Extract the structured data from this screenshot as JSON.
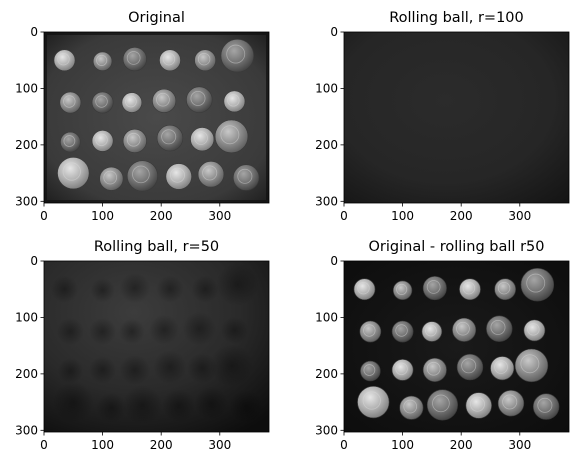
{
  "figure": {
    "cmap": "gray",
    "background": "#ffffff"
  },
  "chart_data": [
    {
      "type": "heatmap",
      "title": "Original",
      "image": "coins",
      "xticks": [
        0,
        100,
        200,
        300
      ],
      "yticks": [
        0,
        100,
        200,
        300
      ],
      "xlim": [
        0,
        384
      ],
      "ylim": [
        303,
        0
      ],
      "grid": false,
      "legend": "none"
    },
    {
      "type": "heatmap",
      "title": "Rolling ball, r=100",
      "image": "background-estimate",
      "xticks": [
        0,
        100,
        200,
        300
      ],
      "yticks": [
        0,
        100,
        200,
        300
      ],
      "xlim": [
        0,
        384
      ],
      "ylim": [
        303,
        0
      ],
      "grid": false,
      "legend": "none"
    },
    {
      "type": "heatmap",
      "title": "Rolling ball, r=50",
      "image": "background-estimate",
      "xticks": [
        0,
        100,
        200,
        300
      ],
      "yticks": [
        0,
        100,
        200,
        300
      ],
      "xlim": [
        0,
        384
      ],
      "ylim": [
        303,
        0
      ],
      "grid": false,
      "legend": "none"
    },
    {
      "type": "heatmap",
      "title": "Original - rolling ball r50",
      "image": "coins-background-subtracted",
      "xticks": [
        0,
        100,
        200,
        300
      ],
      "yticks": [
        0,
        100,
        200,
        300
      ],
      "xlim": [
        0,
        384
      ],
      "ylim": [
        303,
        0
      ],
      "grid": false,
      "legend": "none"
    }
  ]
}
